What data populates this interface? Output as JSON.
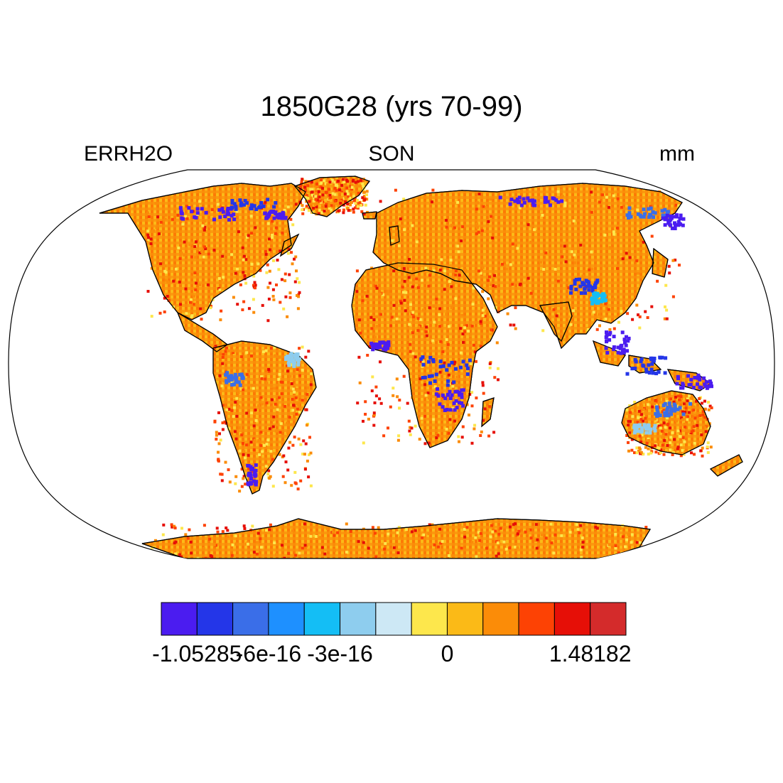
{
  "title": "1850G28 (yrs 70-99)",
  "left_string": "ERRH2O",
  "center_string": "SON",
  "right_string": "mm",
  "colorbar": {
    "colors": [
      "#4b1cf0",
      "#2436e8",
      "#3a6ee8",
      "#1e90ff",
      "#14bef5",
      "#8ecdee",
      "#cde8f5",
      "#fde74c",
      "#fbba17",
      "#fb8c08",
      "#fd4204",
      "#e60f07",
      "#d42b2b"
    ],
    "labels": [
      "-1.05285",
      "-6e-16",
      "-3e-16",
      "0",
      "1.48182"
    ]
  },
  "chart_data": {
    "type": "heatmap",
    "projection": "Robinson",
    "variable": "ERRH2O",
    "season": "SON",
    "units": "mm",
    "range": [
      -1.05285,
      1.48182
    ],
    "note": "Land-only field; mostly 0 to slightly positive (orange), with negative (blue/purple) patches in Canadian Arctic, Siberia, central Africa, Southeast Asia, New Guinea and northern Australia."
  }
}
